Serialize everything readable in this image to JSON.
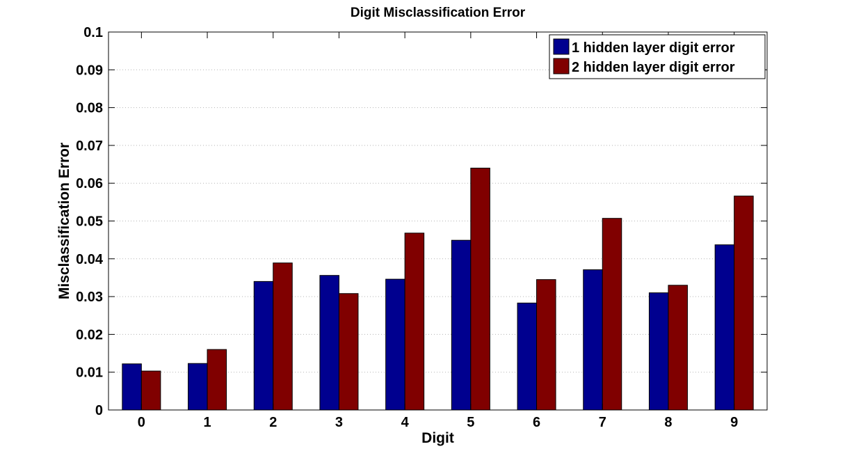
{
  "chart_data": {
    "type": "bar",
    "title": "Digit Misclassification Error",
    "xlabel": "Digit",
    "ylabel": "Misclassification Error",
    "categories": [
      "0",
      "1",
      "2",
      "3",
      "4",
      "5",
      "6",
      "7",
      "8",
      "9"
    ],
    "series": [
      {
        "name": "1 hidden layer digit error",
        "color": "#00008f",
        "values": [
          0.0122,
          0.0123,
          0.034,
          0.0356,
          0.0346,
          0.0449,
          0.0283,
          0.0371,
          0.031,
          0.0437
        ]
      },
      {
        "name": "2 hidden layer digit error",
        "color": "#800000",
        "values": [
          0.0103,
          0.016,
          0.0389,
          0.0308,
          0.0468,
          0.064,
          0.0345,
          0.0507,
          0.033,
          0.0566
        ]
      }
    ],
    "ylim": [
      0,
      0.1
    ],
    "yticks": [
      "0",
      "0.01",
      "0.02",
      "0.03",
      "0.04",
      "0.05",
      "0.06",
      "0.07",
      "0.08",
      "0.09",
      "0.1"
    ],
    "grid": true,
    "legend_position": "top-right"
  }
}
